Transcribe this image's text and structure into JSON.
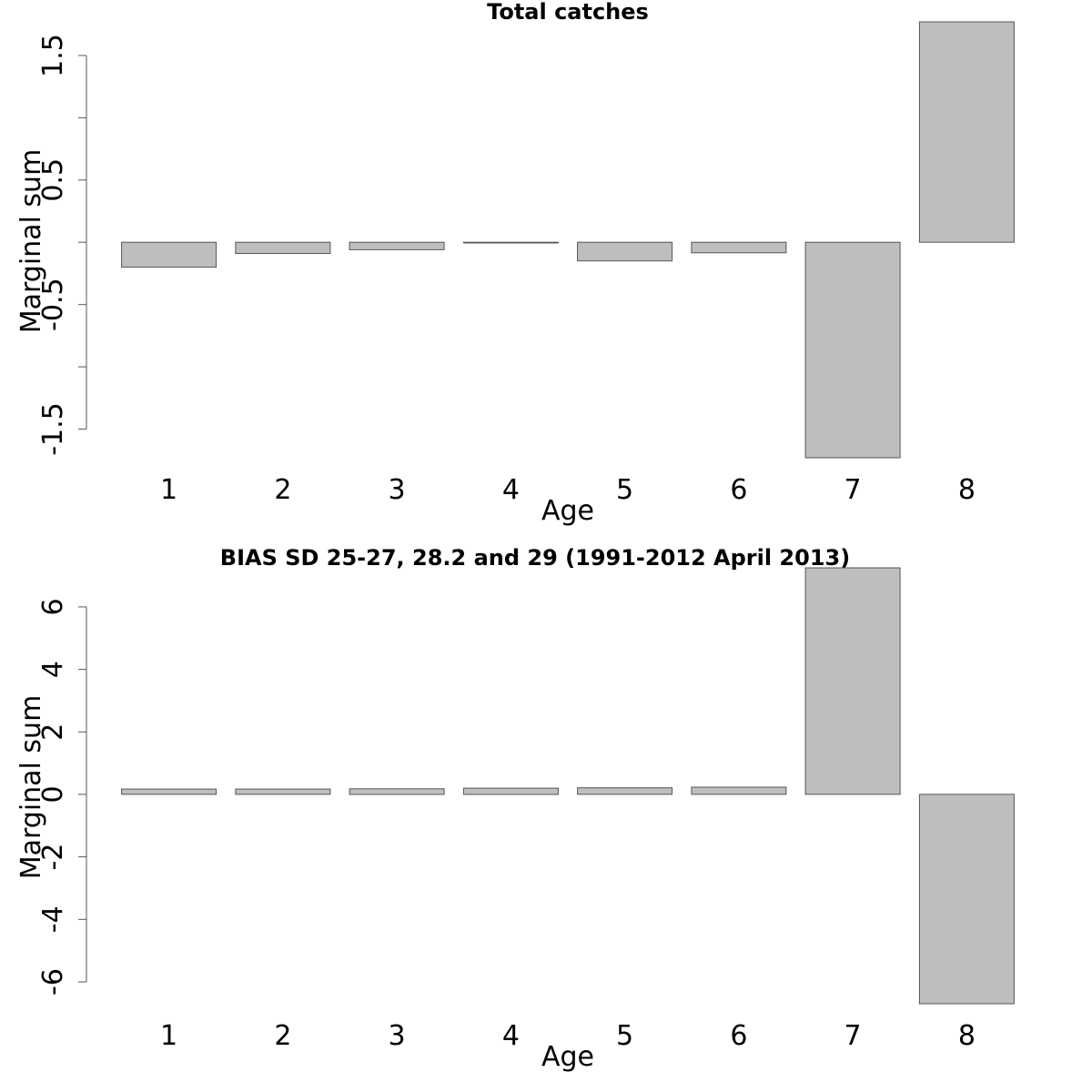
{
  "chart_data": [
    {
      "type": "bar",
      "title": "Total catches",
      "xlabel": "Age",
      "ylabel": "Marginal sum",
      "categories": [
        "1",
        "2",
        "3",
        "4",
        "5",
        "6",
        "7",
        "8"
      ],
      "values": [
        -0.2,
        -0.09,
        -0.06,
        -0.005,
        -0.15,
        -0.085,
        -1.73,
        1.77
      ],
      "ylim": [
        -1.73,
        1.77
      ],
      "yticks": [
        -1.5,
        -1.0,
        -0.5,
        0.0,
        0.5,
        1.0,
        1.5
      ],
      "ytick_labels": [
        "-1.5",
        "",
        "-0.5",
        "",
        "0.5",
        "",
        "1.5"
      ],
      "bar_color": "#bebebe",
      "grid": false
    },
    {
      "type": "bar",
      "title": "BIAS SD 25-27, 28.2 and 29 (1991-2012 April 2013)",
      "xlabel": "Age",
      "ylabel": "Marginal sum",
      "categories": [
        "1",
        "2",
        "3",
        "4",
        "5",
        "6",
        "7",
        "8"
      ],
      "values": [
        0.17,
        0.17,
        0.18,
        0.2,
        0.21,
        0.23,
        7.25,
        -6.7
      ],
      "ylim": [
        -6.7,
        7.25
      ],
      "yticks": [
        -6,
        -4,
        -2,
        0,
        2,
        4,
        6
      ],
      "ytick_labels": [
        "-6",
        "-4",
        "-2",
        "0",
        "2",
        "4",
        "6"
      ],
      "bar_color": "#bebebe",
      "grid": false
    }
  ]
}
